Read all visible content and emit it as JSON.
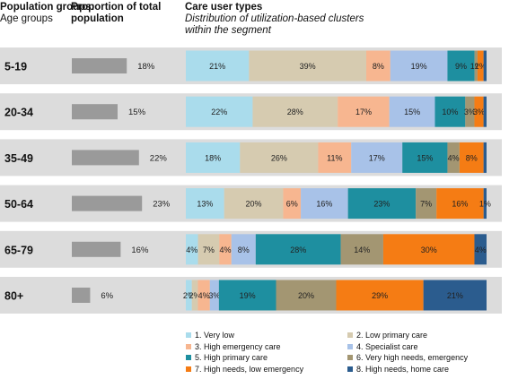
{
  "headers": {
    "age": {
      "title": "Population groups:",
      "sub": "Age groups"
    },
    "pop": {
      "title": "Proportion of total population"
    },
    "care": {
      "title": "Care user types",
      "sub": "Distribution of utilization-based clusters within the segment"
    }
  },
  "colors": {
    "row_band": "#dcdcdc",
    "pop_bar": "#9a9a9a",
    "clusters": [
      "#aadcec",
      "#d6cbb0",
      "#f7b690",
      "#a8c2e8",
      "#1e8fa0",
      "#a39672",
      "#f57c14",
      "#2b5c8e"
    ]
  },
  "chart_data": {
    "type": "bar",
    "stacked": true,
    "orientation": "horizontal",
    "categories": [
      "5-19",
      "20-34",
      "35-49",
      "50-64",
      "65-79",
      "80+"
    ],
    "population_share_percent": [
      18,
      15,
      22,
      23,
      16,
      6
    ],
    "population_share_labels": [
      "18%",
      "15%",
      "22%",
      "23%",
      "16%",
      "6%"
    ],
    "series": [
      {
        "name": "1. Very low",
        "values": [
          21,
          22,
          18,
          13,
          4,
          2
        ],
        "labels": [
          "21%",
          "22%",
          "18%",
          "13%",
          "4%",
          "2%"
        ]
      },
      {
        "name": "2. Low primary care",
        "values": [
          39,
          28,
          26,
          20,
          7,
          2
        ],
        "labels": [
          "39%",
          "28%",
          "26%",
          "20%",
          "7%",
          "2%"
        ]
      },
      {
        "name": "3. High emergency care",
        "values": [
          8,
          17,
          11,
          6,
          4,
          4
        ],
        "labels": [
          "8%",
          "17%",
          "11%",
          "6%",
          "4%",
          "4%"
        ]
      },
      {
        "name": "4. Specialist care",
        "values": [
          19,
          15,
          17,
          16,
          8,
          3
        ],
        "labels": [
          "19%",
          "15%",
          "17%",
          "16%",
          "8%",
          "3%"
        ]
      },
      {
        "name": "5. High primary care",
        "values": [
          9,
          10,
          15,
          23,
          28,
          19
        ],
        "labels": [
          "9%",
          "10%",
          "15%",
          "23%",
          "28%",
          "19%"
        ]
      },
      {
        "name": "6. Very high needs, emergency",
        "values": [
          1,
          3,
          4,
          7,
          14,
          20
        ],
        "labels": [
          "1%",
          "3%",
          "4%",
          "7%",
          "14%",
          "20%"
        ]
      },
      {
        "name": "7. High needs, low emergency",
        "values": [
          2,
          3,
          8,
          16,
          30,
          29
        ],
        "labels": [
          "2%",
          "3%",
          "8%",
          "16%",
          "30%",
          "29%"
        ]
      },
      {
        "name": "8. High needs, home care",
        "values": [
          1,
          1,
          1,
          1,
          4,
          21
        ],
        "labels": [
          "",
          "",
          "",
          "1%",
          "4%",
          "21%"
        ]
      }
    ],
    "legend_position": "bottom",
    "grid": false
  }
}
